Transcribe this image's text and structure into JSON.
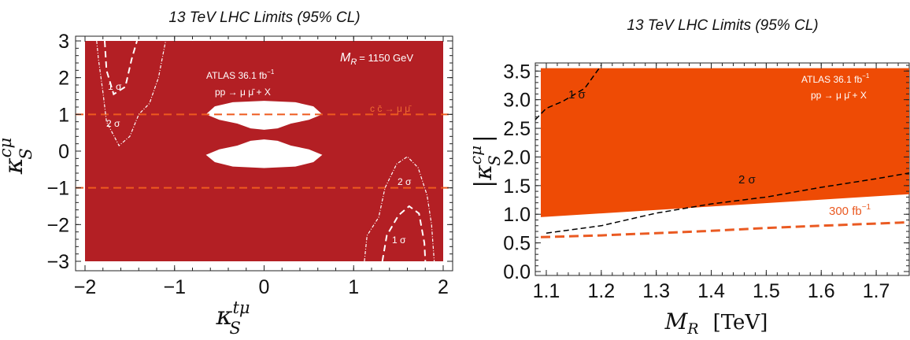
{
  "chart_data": [
    {
      "type": "area",
      "title": "13 TeV LHC Limits (95% CL)",
      "xlabel": {
        "symbol": "κ",
        "sup": "tμ",
        "sub": "S"
      },
      "ylabel": {
        "symbol": "κ",
        "sup": "cμ",
        "sub": "S"
      },
      "xlim": [
        -2,
        2
      ],
      "ylim": [
        -3,
        3
      ],
      "x_ticks": [
        "−2",
        "−1",
        "0",
        "1",
        "2"
      ],
      "y_ticks": [
        "3",
        "2",
        "1",
        "0",
        "−1",
        "−2",
        "−3"
      ],
      "colors": {
        "excluded": "#b31f24",
        "allowed": "#ffffff",
        "sigma_contour": "#ffffff",
        "cc_line": "#ee5a1e"
      },
      "annotations": {
        "mass": "M",
        "mass_sub": "R",
        "mass_value": "= 1150 GeV",
        "experiment": "ATLAS  36.1 fb",
        "experiment_sup": "−1",
        "process": "pp → μ μ̄ + X",
        "cc_process": "c c̄ → μ μ̄",
        "sigma1": "1 σ",
        "sigma2": "2 σ"
      },
      "horizontal_lines": [
        1,
        -1
      ],
      "allowed_region": {
        "upper_lobe": [
          [
            -0.65,
            1.0
          ],
          [
            -0.55,
            1.22
          ],
          [
            -0.35,
            1.33
          ],
          [
            0,
            1.37
          ],
          [
            0.35,
            1.33
          ],
          [
            0.55,
            1.22
          ],
          [
            0.65,
            1.0
          ],
          [
            0.5,
            0.85
          ],
          [
            0.3,
            0.75
          ],
          [
            0.15,
            0.62
          ],
          [
            0,
            0.58
          ],
          [
            -0.15,
            0.62
          ],
          [
            -0.3,
            0.75
          ],
          [
            -0.5,
            0.85
          ]
        ],
        "lower_lobe": [
          [
            -0.65,
            -0.1
          ],
          [
            -0.5,
            0.05
          ],
          [
            -0.3,
            0.15
          ],
          [
            -0.15,
            0.28
          ],
          [
            0,
            0.32
          ],
          [
            0.15,
            0.28
          ],
          [
            0.3,
            0.15
          ],
          [
            0.5,
            0.05
          ],
          [
            0.65,
            -0.1
          ],
          [
            0.55,
            -0.3
          ],
          [
            0.35,
            -0.42
          ],
          [
            0,
            -0.46
          ],
          [
            -0.35,
            -0.42
          ],
          [
            -0.55,
            -0.3
          ]
        ]
      },
      "contours_left": {
        "one_sigma": [
          [
            -1.78,
            3
          ],
          [
            -1.76,
            2.2
          ],
          [
            -1.68,
            1.55
          ],
          [
            -1.55,
            1.75
          ],
          [
            -1.48,
            2.5
          ],
          [
            -1.42,
            3
          ]
        ],
        "two_sigma": [
          [
            -1.87,
            3
          ],
          [
            -1.85,
            2.5
          ],
          [
            -1.8,
            1.6
          ],
          [
            -1.76,
            0.8
          ],
          [
            -1.62,
            0.15
          ],
          [
            -1.5,
            0.4
          ],
          [
            -1.4,
            1.0
          ],
          [
            -1.28,
            1.3
          ],
          [
            -1.18,
            2.0
          ],
          [
            -1.1,
            3
          ]
        ]
      },
      "contours_right": {
        "one_sigma": [
          [
            1.32,
            -3
          ],
          [
            1.37,
            -2.3
          ],
          [
            1.5,
            -1.75
          ],
          [
            1.62,
            -1.5
          ],
          [
            1.73,
            -1.7
          ],
          [
            1.79,
            -2.5
          ],
          [
            1.8,
            -3
          ]
        ],
        "two_sigma": [
          [
            1.12,
            -3
          ],
          [
            1.15,
            -2.3
          ],
          [
            1.28,
            -1.8
          ],
          [
            1.35,
            -1.0
          ],
          [
            1.48,
            -0.35
          ],
          [
            1.6,
            -0.15
          ],
          [
            1.72,
            -0.45
          ],
          [
            1.82,
            -1.2
          ],
          [
            1.87,
            -2.0
          ],
          [
            1.9,
            -3
          ]
        ]
      }
    },
    {
      "type": "area",
      "title": "13 TeV LHC Limits (95% CL)",
      "xlabel": {
        "symbol": "M",
        "sub": "R",
        "unit": "[TeV]"
      },
      "ylabel": {
        "symbol": "κ",
        "sup": "cμ",
        "sub": "S"
      },
      "xlim": [
        1.08,
        1.76
      ],
      "ylim": [
        0,
        3.6
      ],
      "x_ticks": [
        "1.1",
        "1.2",
        "1.3",
        "1.4",
        "1.5",
        "1.6",
        "1.7"
      ],
      "y_ticks": [
        "3.5",
        "3.0",
        "2.5",
        "2.0",
        "1.5",
        "1.0",
        "0.5",
        "0.0"
      ],
      "colors": {
        "excluded": "#ee4b05",
        "projection": "#ea5a22",
        "contour": "#000000"
      },
      "annotations": {
        "experiment": "ATLAS  36.1 fb",
        "experiment_sup": "−1",
        "process": "pp → μ μ̄ + X",
        "projection": "300 fb",
        "projection_sup": "−1",
        "sigma1": "1 σ",
        "sigma2": "2 σ"
      },
      "series": [
        {
          "name": "ATLAS 36.1 fb−1",
          "x": [
            1.09,
            1.76
          ],
          "y": [
            0.95,
            1.35
          ]
        },
        {
          "name": "300 fb−1",
          "x": [
            1.09,
            1.2,
            1.3,
            1.4,
            1.5,
            1.6,
            1.76
          ],
          "y": [
            0.6,
            0.63,
            0.67,
            0.71,
            0.76,
            0.8,
            0.86
          ]
        },
        {
          "name": "1 σ",
          "x": [
            1.08,
            1.1,
            1.13,
            1.17,
            1.2
          ],
          "y": [
            2.65,
            2.85,
            2.97,
            3.2,
            3.6
          ]
        },
        {
          "name": "2 σ",
          "x": [
            1.1,
            1.2,
            1.3,
            1.4,
            1.5,
            1.6,
            1.7,
            1.76
          ],
          "y": [
            0.67,
            0.8,
            1.02,
            1.18,
            1.3,
            1.47,
            1.62,
            1.72
          ]
        }
      ]
    }
  ]
}
